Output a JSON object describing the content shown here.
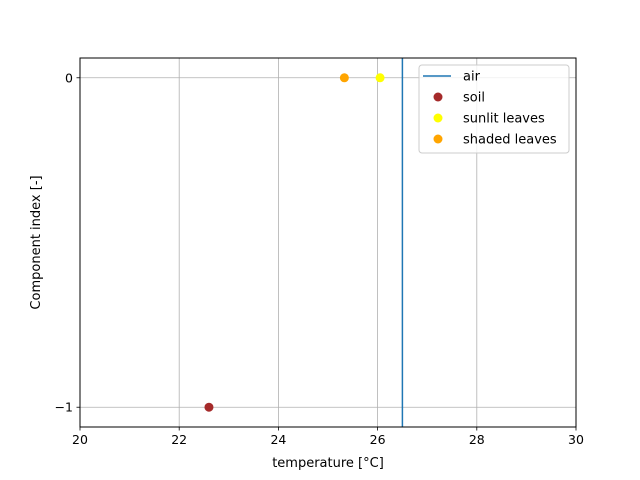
{
  "chart_data": {
    "type": "scatter",
    "xlabel": "temperature [°C]",
    "ylabel": "Component index [-]",
    "xlim": [
      20,
      30
    ],
    "ylim": [
      -1.06,
      0.06
    ],
    "xticks": [
      20,
      22,
      24,
      26,
      28,
      30
    ],
    "yticks": [
      -1,
      0
    ],
    "xtick_labels": [
      "20",
      "22",
      "24",
      "26",
      "28",
      "30"
    ],
    "ytick_labels": [
      "−1",
      "0"
    ],
    "grid": true,
    "legend_position": "top-right",
    "vertical_lines": [
      {
        "name": "air",
        "x": 26.5,
        "color": "#1f77b4"
      }
    ],
    "series": [
      {
        "name": "soil",
        "color": "#a52a2a",
        "points": [
          {
            "x": 22.6,
            "y": -1
          }
        ]
      },
      {
        "name": "sunlit leaves",
        "color": "#ffff00",
        "points": [
          {
            "x": 26.05,
            "y": 0
          }
        ]
      },
      {
        "name": "shaded leaves",
        "color": "#ffa500",
        "points": [
          {
            "x": 25.33,
            "y": 0
          }
        ]
      }
    ],
    "legend": [
      {
        "label": "air",
        "kind": "line",
        "color": "#1f77b4"
      },
      {
        "label": "soil",
        "kind": "marker",
        "color": "#a52a2a"
      },
      {
        "label": "sunlit leaves",
        "kind": "marker",
        "color": "#ffff00"
      },
      {
        "label": "shaded leaves",
        "kind": "marker",
        "color": "#ffa500"
      }
    ]
  }
}
